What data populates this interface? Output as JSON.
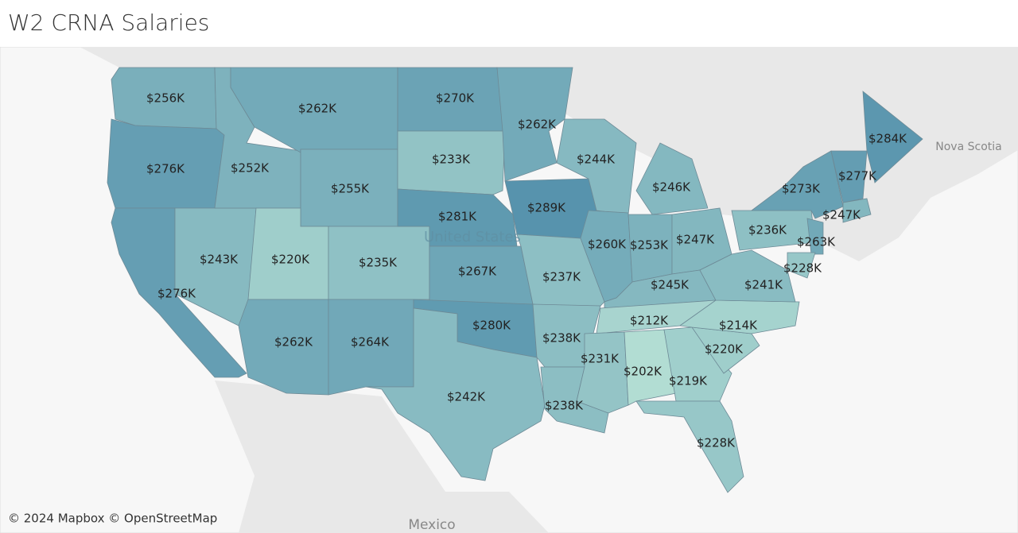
{
  "header": {
    "title": "W2 CRNA Salaries"
  },
  "map": {
    "type": "choropleth",
    "colors": [
      "#b2ddd3",
      "#5793ad"
    ],
    "regions": [
      {
        "value": 256000,
        "label": "$256K"
      },
      {
        "value": 276000,
        "label": "$276K"
      },
      {
        "value": 276000,
        "label": "$276K"
      },
      {
        "value": 243000,
        "label": "$243K"
      },
      {
        "value": 252000,
        "label": "$252K"
      },
      {
        "value": 262000,
        "label": "$262K"
      },
      {
        "value": 255000,
        "label": "$255K"
      },
      {
        "value": 220000,
        "label": "$220K"
      },
      {
        "value": 235000,
        "label": "$235K"
      },
      {
        "value": 262000,
        "label": "$262K"
      },
      {
        "value": 264000,
        "label": "$264K"
      },
      {
        "value": 270000,
        "label": "$270K"
      },
      {
        "value": 233000,
        "label": "$233K"
      },
      {
        "value": 281000,
        "label": "$281K"
      },
      {
        "value": 267000,
        "label": "$267K"
      },
      {
        "value": 280000,
        "label": "$280K"
      },
      {
        "value": 242000,
        "label": "$242K"
      },
      {
        "value": 262000,
        "label": "$262K"
      },
      {
        "value": 289000,
        "label": "$289K"
      },
      {
        "value": 237000,
        "label": "$237K"
      },
      {
        "value": 238000,
        "label": "$238K"
      },
      {
        "value": 238000,
        "label": "$238K"
      },
      {
        "value": 244000,
        "label": "$244K"
      },
      {
        "value": 260000,
        "label": "$260K"
      },
      {
        "value": 253000,
        "label": "$253K"
      },
      {
        "value": 247000,
        "label": "$247K"
      },
      {
        "value": 246000,
        "label": "$246K"
      },
      {
        "value": 245000,
        "label": "$245K"
      },
      {
        "value": 212000,
        "label": "$212K"
      },
      {
        "value": 231000,
        "label": "$231K"
      },
      {
        "value": 202000,
        "label": "$202K"
      },
      {
        "value": 219000,
        "label": "$219K"
      },
      {
        "value": 228000,
        "label": "$228K"
      },
      {
        "value": 220000,
        "label": "$220K"
      },
      {
        "value": 214000,
        "label": "$214K"
      },
      {
        "value": 241000,
        "label": "$241K"
      },
      {
        "value": 236000,
        "label": "$236K"
      },
      {
        "value": 273000,
        "label": "$273K"
      },
      {
        "value": 263000,
        "label": "$263K"
      },
      {
        "value": 228000,
        "label": "$228K"
      },
      {
        "value": 277000,
        "label": "$277K"
      },
      {
        "value": 284000,
        "label": "$284K"
      },
      {
        "value": 247000,
        "label": "$247K"
      }
    ],
    "place_labels": [
      "United States",
      "Nova Scotia",
      "Mexico"
    ],
    "attribution": "© 2024 Mapbox © OpenStreetMap"
  }
}
